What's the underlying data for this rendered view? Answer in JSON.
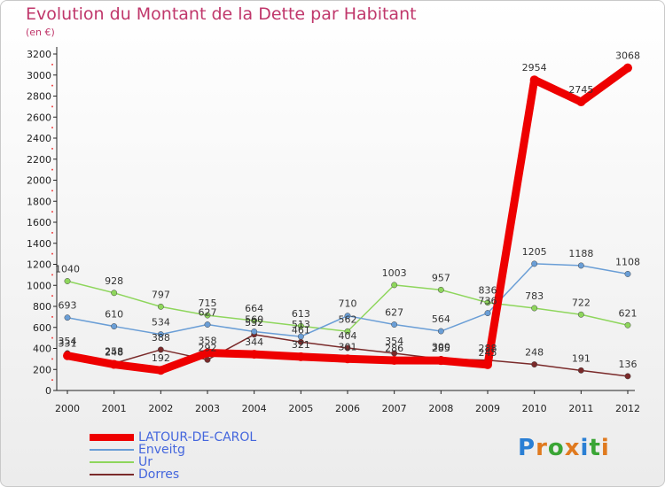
{
  "title": "Evolution du Montant de la Dette par Habitant",
  "subtitle": "(en €)",
  "logo": "Proxiti",
  "chart_data": {
    "type": "line",
    "categories": [
      "2000",
      "2001",
      "2002",
      "2003",
      "2004",
      "2005",
      "2006",
      "2007",
      "2008",
      "2009",
      "2010",
      "2011",
      "2012"
    ],
    "ylim": [
      0,
      3200
    ],
    "yticks": [
      0,
      200,
      400,
      600,
      800,
      1000,
      1200,
      1400,
      1600,
      1800,
      2000,
      2200,
      2400,
      2600,
      2800,
      3000,
      3200
    ],
    "grid": false,
    "legend_position": "bottom-left",
    "series": [
      {
        "name": "LATOUR-DE-CAROL",
        "color": "#ee0000",
        "values": [
          331,
          248,
          192,
          358,
          344,
          321,
          301,
          286,
          285,
          245,
          2954,
          2745,
          3068
        ]
      },
      {
        "name": "Enveitg",
        "color": "#6a9ed6",
        "values": [
          693,
          610,
          534,
          627,
          560,
          513,
          710,
          627,
          564,
          736,
          1205,
          1188,
          1108
        ]
      },
      {
        "name": "Ur",
        "color": "#8ed65c",
        "values": [
          1040,
          928,
          797,
          715,
          664,
          613,
          562,
          1003,
          957,
          836,
          783,
          722,
          621
        ]
      },
      {
        "name": "Dorres",
        "color": "#7a2a2a",
        "values": [
          354,
          258,
          388,
          292,
          532,
          461,
          404,
          354,
          300,
          288,
          248,
          191,
          136
        ]
      }
    ]
  }
}
